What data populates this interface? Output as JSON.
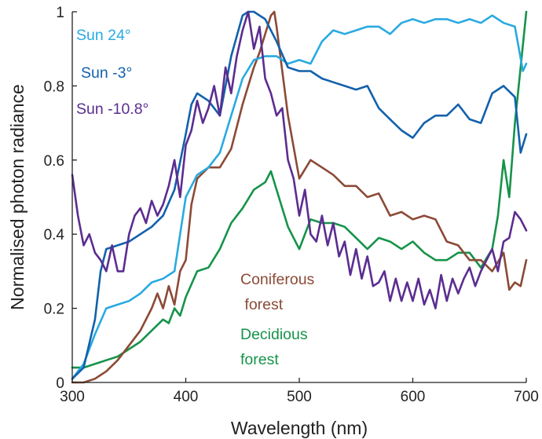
{
  "chart_data": {
    "type": "line",
    "title": "",
    "xlabel": "Wavelength (nm)",
    "ylabel": "Normalised photon radiance",
    "xlim": [
      300,
      700
    ],
    "ylim": [
      0,
      1
    ],
    "xticks": [
      300,
      400,
      500,
      600,
      700
    ],
    "yticks": [
      0,
      0.2,
      0.4,
      0.6,
      0.8,
      1
    ],
    "ytick_labels": [
      "0",
      "0.2",
      "0.4",
      "0.6",
      "0.8",
      "1"
    ],
    "grid": false,
    "legend": "inline labels",
    "series": [
      {
        "name": "Sun 24°",
        "color": "#29aae1",
        "x": [
          300,
          310,
          320,
          330,
          340,
          350,
          360,
          370,
          380,
          390,
          400,
          410,
          420,
          430,
          440,
          450,
          460,
          470,
          480,
          490,
          500,
          510,
          520,
          530,
          540,
          550,
          560,
          570,
          580,
          590,
          600,
          610,
          620,
          630,
          640,
          650,
          660,
          670,
          680,
          690,
          697,
          700
        ],
        "y": [
          0.01,
          0.05,
          0.13,
          0.2,
          0.21,
          0.22,
          0.24,
          0.27,
          0.28,
          0.3,
          0.5,
          0.56,
          0.58,
          0.62,
          0.72,
          0.82,
          0.87,
          0.88,
          0.88,
          0.86,
          0.87,
          0.86,
          0.92,
          0.95,
          0.94,
          0.95,
          0.96,
          0.96,
          0.94,
          0.97,
          0.98,
          0.97,
          0.98,
          0.98,
          0.97,
          0.98,
          0.97,
          0.99,
          0.97,
          0.96,
          0.84,
          0.86
        ]
      },
      {
        "name": "Sun -3°",
        "color": "#1261ac",
        "x": [
          300,
          310,
          320,
          325,
          330,
          340,
          350,
          360,
          370,
          380,
          390,
          400,
          405,
          410,
          420,
          430,
          440,
          450,
          455,
          460,
          470,
          480,
          490,
          500,
          510,
          520,
          530,
          540,
          550,
          560,
          570,
          580,
          590,
          600,
          610,
          620,
          630,
          640,
          650,
          660,
          670,
          680,
          690,
          695,
          700
        ],
        "y": [
          0.01,
          0.04,
          0.17,
          0.3,
          0.36,
          0.37,
          0.38,
          0.4,
          0.42,
          0.45,
          0.52,
          0.67,
          0.75,
          0.78,
          0.76,
          0.72,
          0.88,
          0.99,
          1.0,
          1.0,
          0.98,
          0.92,
          0.85,
          0.84,
          0.84,
          0.82,
          0.81,
          0.8,
          0.79,
          0.8,
          0.74,
          0.71,
          0.68,
          0.66,
          0.7,
          0.72,
          0.72,
          0.75,
          0.71,
          0.7,
          0.78,
          0.8,
          0.77,
          0.62,
          0.67
        ]
      },
      {
        "name": "Sun -10.8°",
        "color": "#5b2d90",
        "x": [
          300,
          305,
          310,
          315,
          320,
          325,
          330,
          335,
          340,
          345,
          350,
          355,
          360,
          365,
          370,
          375,
          380,
          385,
          390,
          395,
          400,
          405,
          410,
          415,
          420,
          425,
          430,
          435,
          440,
          445,
          450,
          455,
          460,
          465,
          470,
          475,
          480,
          485,
          490,
          495,
          500,
          505,
          510,
          515,
          520,
          525,
          530,
          535,
          540,
          545,
          550,
          555,
          560,
          565,
          570,
          575,
          580,
          585,
          590,
          595,
          600,
          605,
          610,
          615,
          620,
          625,
          630,
          635,
          640,
          645,
          650,
          655,
          660,
          665,
          670,
          675,
          680,
          685,
          690,
          695,
          700
        ],
        "y": [
          0.56,
          0.45,
          0.37,
          0.4,
          0.35,
          0.33,
          0.3,
          0.37,
          0.3,
          0.3,
          0.4,
          0.45,
          0.47,
          0.43,
          0.49,
          0.45,
          0.48,
          0.53,
          0.6,
          0.5,
          0.64,
          0.68,
          0.76,
          0.7,
          0.74,
          0.8,
          0.72,
          0.85,
          0.78,
          0.88,
          0.95,
          1.0,
          0.9,
          0.96,
          0.82,
          0.78,
          0.72,
          0.74,
          0.6,
          0.55,
          0.45,
          0.52,
          0.4,
          0.38,
          0.45,
          0.37,
          0.43,
          0.34,
          0.38,
          0.29,
          0.36,
          0.28,
          0.34,
          0.26,
          0.27,
          0.3,
          0.22,
          0.28,
          0.22,
          0.27,
          0.22,
          0.28,
          0.21,
          0.25,
          0.2,
          0.29,
          0.22,
          0.28,
          0.24,
          0.28,
          0.31,
          0.26,
          0.3,
          0.33,
          0.36,
          0.3,
          0.38,
          0.39,
          0.46,
          0.44,
          0.41
        ]
      },
      {
        "name": "Coniferous\n forest",
        "color": "#8b4a36",
        "x": [
          300,
          310,
          320,
          330,
          340,
          350,
          360,
          370,
          375,
          380,
          385,
          390,
          395,
          400,
          405,
          410,
          420,
          430,
          440,
          450,
          460,
          465,
          470,
          475,
          478,
          480,
          490,
          500,
          510,
          520,
          530,
          540,
          550,
          560,
          570,
          580,
          590,
          600,
          610,
          620,
          630,
          640,
          650,
          660,
          670,
          680,
          685,
          690,
          695,
          700
        ],
        "y": [
          0.0,
          0.0,
          0.01,
          0.03,
          0.06,
          0.1,
          0.14,
          0.2,
          0.24,
          0.2,
          0.26,
          0.21,
          0.3,
          0.33,
          0.48,
          0.55,
          0.58,
          0.58,
          0.63,
          0.75,
          0.85,
          0.89,
          0.94,
          0.99,
          1.0,
          0.96,
          0.72,
          0.55,
          0.6,
          0.58,
          0.56,
          0.53,
          0.53,
          0.5,
          0.51,
          0.45,
          0.46,
          0.44,
          0.45,
          0.44,
          0.38,
          0.37,
          0.33,
          0.33,
          0.3,
          0.35,
          0.25,
          0.27,
          0.26,
          0.33
        ]
      },
      {
        "name": "Decidious\nforest",
        "color": "#16934a",
        "x": [
          300,
          310,
          320,
          330,
          340,
          350,
          360,
          370,
          380,
          385,
          390,
          395,
          400,
          410,
          420,
          430,
          440,
          450,
          460,
          470,
          475,
          480,
          490,
          500,
          510,
          520,
          530,
          540,
          550,
          560,
          570,
          580,
          590,
          600,
          610,
          620,
          630,
          640,
          650,
          660,
          670,
          675,
          680,
          685,
          690,
          695,
          700
        ],
        "y": [
          0.04,
          0.04,
          0.05,
          0.06,
          0.07,
          0.09,
          0.11,
          0.14,
          0.17,
          0.16,
          0.2,
          0.18,
          0.23,
          0.3,
          0.31,
          0.36,
          0.43,
          0.47,
          0.52,
          0.54,
          0.57,
          0.52,
          0.42,
          0.36,
          0.44,
          0.43,
          0.43,
          0.42,
          0.39,
          0.36,
          0.39,
          0.38,
          0.36,
          0.38,
          0.35,
          0.33,
          0.33,
          0.35,
          0.35,
          0.31,
          0.36,
          0.45,
          0.6,
          0.5,
          0.7,
          0.85,
          1.0
        ]
      }
    ]
  }
}
